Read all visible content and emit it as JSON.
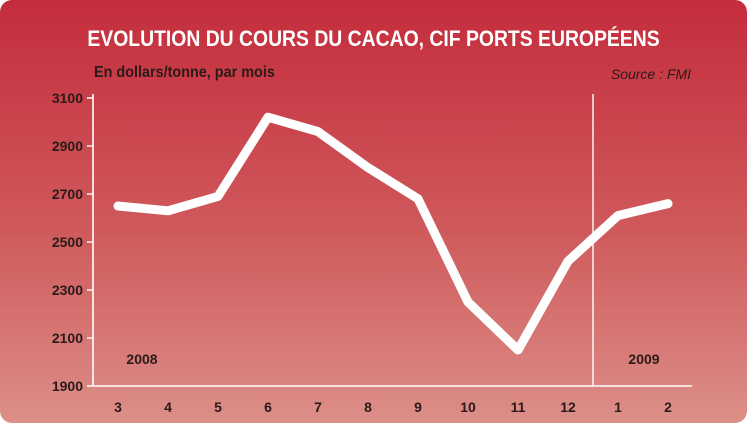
{
  "chart_data": {
    "type": "line",
    "title": "EVOLUTION DU COURS DU CACAO, CIF PORTS EUROPÉENS",
    "subtitle": "En dollars/tonne, par mois",
    "source": "Source : FMI",
    "xlabel": "",
    "ylabel": "",
    "categories": [
      "3",
      "4",
      "5",
      "6",
      "7",
      "8",
      "9",
      "10",
      "11",
      "12",
      "1",
      "2"
    ],
    "series": [
      {
        "values": [
          2650,
          2630,
          2690,
          3020,
          2960,
          2810,
          2680,
          2250,
          2050,
          2420,
          2610,
          2660
        ]
      }
    ],
    "ylim": [
      1900,
      3100
    ],
    "yticks": [
      1900,
      2100,
      2300,
      2500,
      2700,
      2900,
      3100
    ],
    "year_labels": [
      "2008",
      "2009"
    ],
    "year_divider_after_index": 9,
    "grid": false,
    "line_color": "#ffffff"
  }
}
